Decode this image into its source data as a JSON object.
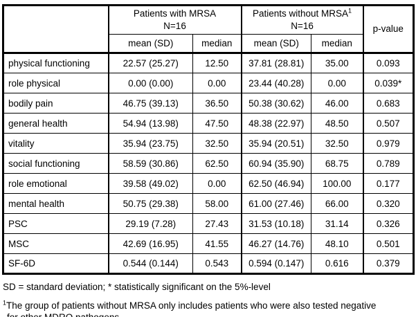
{
  "table": {
    "groups": [
      {
        "title": "Patients with MRSA",
        "n": "N=16"
      },
      {
        "title": "Patients without MRSA",
        "footnote_marker": "1",
        "n": "N=16"
      }
    ],
    "p_value_header": "p-value",
    "subheaders": [
      "mean (SD)",
      "median",
      "mean (SD)",
      "median"
    ],
    "rows": [
      {
        "label": "physical functioning",
        "g1_mean_sd": "22.57 (25.27)",
        "g1_median": "12.50",
        "g2_mean_sd": "37.81 (28.81)",
        "g2_median": "35.00",
        "p_value": "0.093"
      },
      {
        "label": "role physical",
        "g1_mean_sd": "0.00 (0.00)",
        "g1_median": "0.00",
        "g2_mean_sd": "23.44 (40.28)",
        "g2_median": "0.00",
        "p_value": "0.039*"
      },
      {
        "label": "bodily pain",
        "g1_mean_sd": "46.75 (39.13)",
        "g1_median": "36.50",
        "g2_mean_sd": "50.38 (30.62)",
        "g2_median": "46.00",
        "p_value": "0.683"
      },
      {
        "label": "general health",
        "g1_mean_sd": "54.94 (13.98)",
        "g1_median": "47.50",
        "g2_mean_sd": "48.38 (22.97)",
        "g2_median": "48.50",
        "p_value": "0.507"
      },
      {
        "label": "vitality",
        "g1_mean_sd": "35.94 (23.75)",
        "g1_median": "32.50",
        "g2_mean_sd": "35.94 (20.51)",
        "g2_median": "32.50",
        "p_value": "0.979"
      },
      {
        "label": "social functioning",
        "g1_mean_sd": "58.59 (30.86)",
        "g1_median": "62.50",
        "g2_mean_sd": "60.94 (35.90)",
        "g2_median": "68.75",
        "p_value": "0.789"
      },
      {
        "label": "role emotional",
        "g1_mean_sd": "39.58 (49.02)",
        "g1_median": "0.00",
        "g2_mean_sd": "62.50 (46.94)",
        "g2_median": "100.00",
        "p_value": "0.177"
      },
      {
        "label": "mental health",
        "g1_mean_sd": "50.75 (29.38)",
        "g1_median": "58.00",
        "g2_mean_sd": "61.00 (27.46)",
        "g2_median": "66.00",
        "p_value": "0.320"
      },
      {
        "label": "PSC",
        "g1_mean_sd": "29.19 (7.28)",
        "g1_median": "27.43",
        "g2_mean_sd": "31.53 (10.18)",
        "g2_median": "31.14",
        "p_value": "0.326"
      },
      {
        "label": "MSC",
        "g1_mean_sd": "42.69 (16.95)",
        "g1_median": "41.55",
        "g2_mean_sd": "46.27 (14.76)",
        "g2_median": "48.10",
        "p_value": "0.501"
      },
      {
        "label": "SF-6D",
        "g1_mean_sd": "0.544 (0.144)",
        "g1_median": "0.543",
        "g2_mean_sd": "0.594 (0.147)",
        "g2_median": "0.616",
        "p_value": "0.379"
      }
    ]
  },
  "footnotes": {
    "sd_note": "SD = standard deviation; * statistically significant on the 5%-level",
    "mrsa_note_marker": "1",
    "mrsa_note_text": "The group of patients without MRSA only includes patients who were also tested negative for other MDRO pathogens."
  },
  "colors": {
    "border": "#000000",
    "background": "#ffffff",
    "text": "#000000"
  }
}
